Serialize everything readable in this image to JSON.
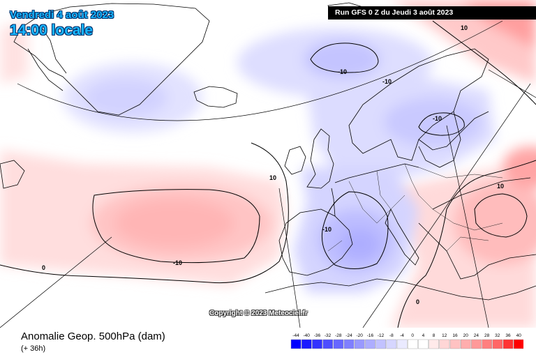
{
  "header": {
    "date": "Vendredi 4 août 2023",
    "local_time": "14:00 locale",
    "run_info": "Run GFS 0 Z du Jeudi 3 août 2023"
  },
  "footer": {
    "copyright": "Copyright © 2023 Meteociel.fr",
    "product": "Anomalie Geop. 500hPa (dam)",
    "forecast_hour": "(+ 36h)"
  },
  "map": {
    "contour_labels": [
      "-10",
      "-10",
      "-10",
      "-10",
      "-10",
      "10",
      "10",
      "0",
      "0",
      "10"
    ]
  },
  "legend": {
    "ticks": [
      "-44",
      "-40",
      "-36",
      "-32",
      "-28",
      "-24",
      "-20",
      "-16",
      "-12",
      "-8",
      "-4",
      "0",
      "4",
      "8",
      "12",
      "16",
      "20",
      "24",
      "28",
      "32",
      "36",
      "40"
    ],
    "colors": [
      "#0000ff",
      "#1a1aff",
      "#3333ff",
      "#4d4dff",
      "#6666ff",
      "#7f7fff",
      "#9999ff",
      "#adadff",
      "#c2c2ff",
      "#d6d6ff",
      "#eaeaff",
      "#ffffff",
      "#ffffff",
      "#ffeaea",
      "#ffd6d6",
      "#ffc2c2",
      "#ffadad",
      "#ff9999",
      "#ff7f7f",
      "#ff6666",
      "#ff3333",
      "#ff0000"
    ]
  }
}
